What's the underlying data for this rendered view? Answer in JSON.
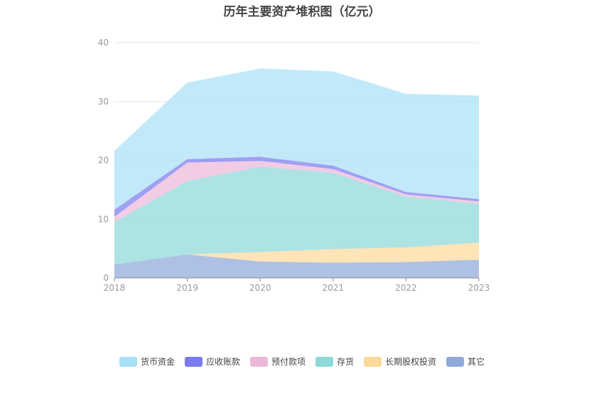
{
  "chart_data": {
    "type": "area",
    "stacked": true,
    "title": "历年主要资产堆积图（亿元）",
    "x": [
      "2018",
      "2019",
      "2020",
      "2021",
      "2022",
      "2023"
    ],
    "yticks": [
      "0",
      "10",
      "20",
      "30",
      "40"
    ],
    "ylim": [
      0,
      40
    ],
    "grid": true,
    "legend_position": "bottom",
    "series": [
      {
        "name": "其它",
        "color": "#8fa9d9",
        "values": [
          2.3,
          4.0,
          2.8,
          2.6,
          2.7,
          3.1
        ]
      },
      {
        "name": "长期股权投资",
        "color": "#fdd99b",
        "values": [
          0.0,
          0.0,
          1.6,
          2.3,
          2.5,
          2.9
        ]
      },
      {
        "name": "存货",
        "color": "#8dd8d8",
        "values": [
          7.2,
          12.5,
          14.5,
          13.0,
          8.6,
          6.6
        ]
      },
      {
        "name": "预付款项",
        "color": "#ebb8d9",
        "values": [
          0.9,
          3.1,
          1.0,
          0.6,
          0.4,
          0.4
        ]
      },
      {
        "name": "应收账款",
        "color": "#7b7bef",
        "values": [
          1.2,
          0.6,
          0.7,
          0.6,
          0.4,
          0.4
        ]
      },
      {
        "name": "货币资金",
        "color": "#a9e0f7",
        "values": [
          10.0,
          13.0,
          15.0,
          16.0,
          16.7,
          17.6
        ]
      }
    ],
    "legend_order": [
      "货币资金",
      "应收账款",
      "预付款项",
      "存货",
      "长期股权投资",
      "其它"
    ]
  }
}
